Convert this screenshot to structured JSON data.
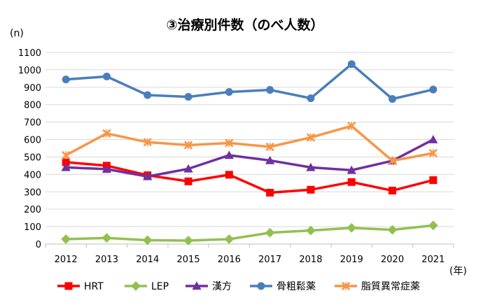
{
  "chart_data": {
    "type": "line",
    "title": "③治療別件数（のべ人数）",
    "y_unit_label": "(n)",
    "x_unit_label": "(年)",
    "ylim": [
      0,
      1100
    ],
    "y_ticks": [
      0,
      100,
      200,
      300,
      400,
      500,
      600,
      700,
      800,
      900,
      1000,
      1100
    ],
    "grid": true,
    "legend_position": "bottom",
    "x": [
      "2012",
      "2013",
      "2014",
      "2015",
      "2016",
      "2017",
      "2018",
      "2019",
      "2020",
      "2021"
    ],
    "series": [
      {
        "name": "HRT",
        "color": "#ff0000",
        "marker": "square",
        "values": [
          470,
          450,
          395,
          360,
          398,
          295,
          312,
          356,
          307,
          367
        ]
      },
      {
        "name": "LEP",
        "color": "#92c050",
        "marker": "diamond",
        "values": [
          28,
          35,
          22,
          20,
          28,
          65,
          78,
          93,
          82,
          107
        ]
      },
      {
        "name": "漢方",
        "color": "#7030a0",
        "marker": "triangle",
        "values": [
          440,
          430,
          388,
          432,
          510,
          480,
          440,
          424,
          478,
          600
        ]
      },
      {
        "name": "骨粗鬆薬",
        "color": "#4a7ebb",
        "marker": "circle",
        "values": [
          945,
          962,
          855,
          845,
          873,
          885,
          837,
          1033,
          833,
          887
        ]
      },
      {
        "name": "脂質異常症薬",
        "color": "#f79646",
        "marker": "x",
        "values": [
          510,
          635,
          585,
          568,
          580,
          558,
          612,
          678,
          478,
          522
        ]
      }
    ]
  }
}
